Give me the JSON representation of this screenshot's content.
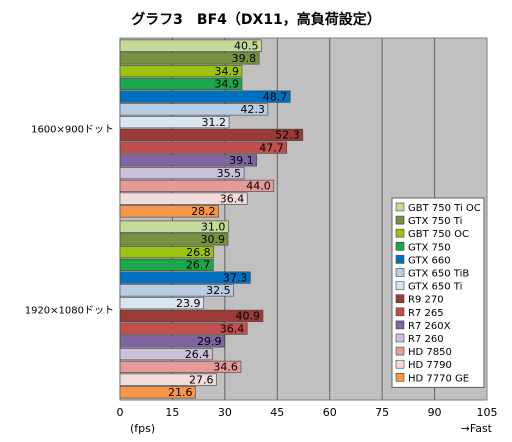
{
  "chart_data": {
    "type": "bar",
    "orientation": "horizontal",
    "title": "グラフ3　BF4（DX11，高負荷設定）",
    "xlabel": "(fps)",
    "xlabel_right": "→Fast",
    "xlim": [
      0,
      105
    ],
    "xticks": [
      "0",
      "15",
      "30",
      "45",
      "60",
      "75",
      "90",
      "105"
    ],
    "grid": true,
    "legend_position": "bottom-right",
    "categories": [
      "1600×900ドット",
      "1920×1080ドット"
    ],
    "series": [
      {
        "name": "GBT 750 Ti OC",
        "color": "#c4da96",
        "values": [
          40.5,
          31.0
        ]
      },
      {
        "name": "GTX 750 Ti",
        "color": "#76923c",
        "values": [
          39.8,
          30.9
        ]
      },
      {
        "name": "GBT 750 OC",
        "color": "#9bc311",
        "values": [
          34.9,
          26.8
        ]
      },
      {
        "name": "GTX 750",
        "color": "#1aa64a",
        "values": [
          34.9,
          26.7
        ]
      },
      {
        "name": "GTX 660",
        "color": "#0070c0",
        "values": [
          48.7,
          37.3
        ]
      },
      {
        "name": "GTX 650 TiB",
        "color": "#b8cce4",
        "values": [
          42.3,
          32.5
        ]
      },
      {
        "name": "GTX 650 Ti",
        "color": "#dbe5f1",
        "values": [
          31.2,
          23.9
        ]
      },
      {
        "name": "R9 270",
        "color": "#9a3b36",
        "values": [
          52.3,
          40.9
        ]
      },
      {
        "name": "R7 265",
        "color": "#c0504d",
        "values": [
          47.7,
          36.4
        ]
      },
      {
        "name": "R7 260X",
        "color": "#8064a2",
        "values": [
          39.1,
          29.9
        ]
      },
      {
        "name": "R7 260",
        "color": "#ccc0da",
        "values": [
          35.5,
          26.4
        ]
      },
      {
        "name": "HD 7850",
        "color": "#e59b98",
        "values": [
          44.0,
          34.6
        ]
      },
      {
        "name": "HD 7790",
        "color": "#f2dcdb",
        "values": [
          36.4,
          27.6
        ]
      },
      {
        "name": "HD 7770 GE",
        "color": "#f79646",
        "values": [
          28.2,
          21.6
        ]
      }
    ]
  }
}
